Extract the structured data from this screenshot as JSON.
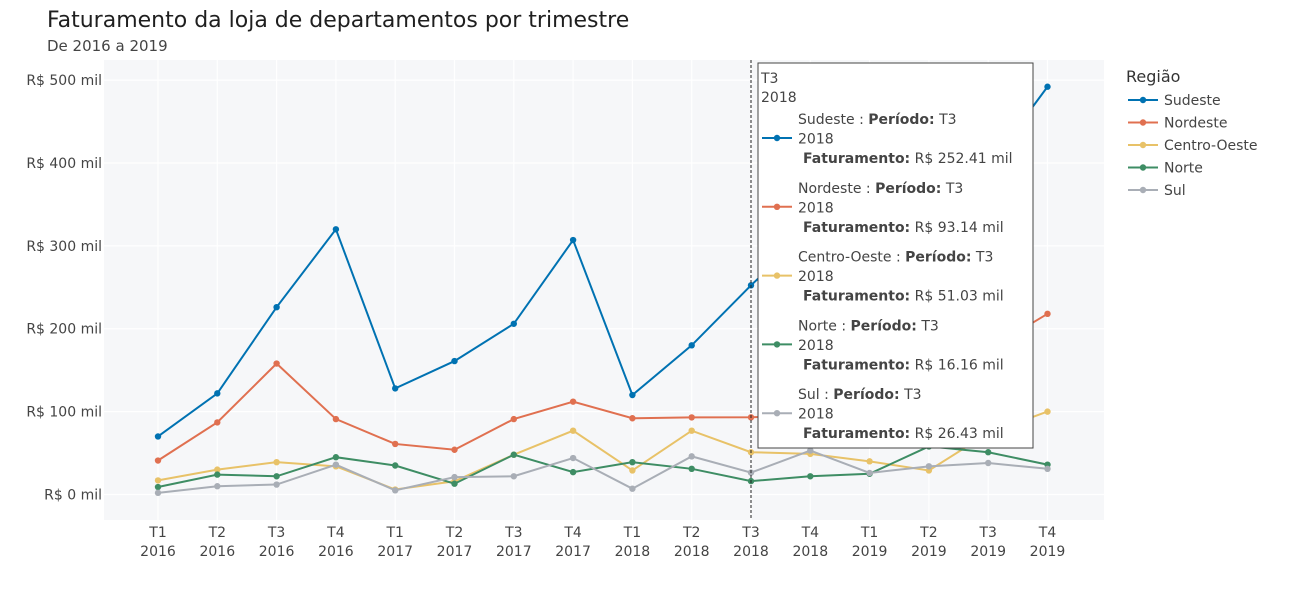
{
  "header": {
    "title": "Faturamento da loja de departamentos por trimestre",
    "subtitle": "De 2016 a 2019"
  },
  "chart_data": {
    "type": "line",
    "title": "Faturamento da loja de departamentos por trimestre",
    "subtitle": "De 2016 a 2019",
    "categories": [
      [
        "T1",
        "2016"
      ],
      [
        "T2",
        "2016"
      ],
      [
        "T3",
        "2016"
      ],
      [
        "T4",
        "2016"
      ],
      [
        "T1",
        "2017"
      ],
      [
        "T2",
        "2017"
      ],
      [
        "T3",
        "2017"
      ],
      [
        "T4",
        "2017"
      ],
      [
        "T1",
        "2018"
      ],
      [
        "T2",
        "2018"
      ],
      [
        "T3",
        "2018"
      ],
      [
        "T4",
        "2018"
      ],
      [
        "T1",
        "2019"
      ],
      [
        "T2",
        "2019"
      ],
      [
        "T3",
        "2019"
      ],
      [
        "T4",
        "2019"
      ]
    ],
    "yticks": [
      {
        "value": 0,
        "label": "R$ 0 mil"
      },
      {
        "value": 100,
        "label": "R$ 100 mil"
      },
      {
        "value": 200,
        "label": "R$ 200 mil"
      },
      {
        "value": 300,
        "label": "R$ 300 mil"
      },
      {
        "value": 400,
        "label": "R$ 400 mil"
      },
      {
        "value": 500,
        "label": "R$ 500 mil"
      }
    ],
    "ylim": [
      -30,
      525
    ],
    "grid": true,
    "legend_title": "Região",
    "legend_position": "right",
    "series": [
      {
        "name": "Sudeste",
        "color": "#0072b2",
        "values": [
          70,
          122,
          226,
          320,
          128,
          161,
          206,
          307,
          120,
          180,
          252.41,
          320,
          338,
          365,
          395,
          492
        ]
      },
      {
        "name": "Nordeste",
        "color": "#e07050",
        "values": [
          41,
          87,
          158,
          91,
          61,
          54,
          91,
          112,
          92,
          93,
          93.14,
          96,
          115,
          140,
          175,
          218
        ]
      },
      {
        "name": "Centro-Oeste",
        "color": "#e8c268",
        "values": [
          17,
          30,
          39,
          34,
          6,
          16,
          48,
          77,
          29,
          77,
          51.03,
          49,
          40,
          29,
          74,
          100
        ]
      },
      {
        "name": "Norte",
        "color": "#3e8d64",
        "values": [
          9,
          24,
          22,
          45,
          35,
          13,
          48,
          27,
          39,
          31,
          16.16,
          22,
          25,
          58,
          51,
          36
        ]
      },
      {
        "name": "Sul",
        "color": "#a9aeb6",
        "values": [
          2,
          10,
          12,
          36,
          5,
          21,
          22,
          44,
          7,
          46,
          26.43,
          53,
          26,
          34,
          38,
          31
        ]
      }
    ],
    "hover": {
      "index": 10,
      "header_line1": "T3",
      "header_line2": "2018",
      "period_label": "Período:",
      "revenue_label": "Faturamento:",
      "entries": [
        {
          "name": "Sudeste",
          "period_value": "T3",
          "year": "2018",
          "revenue_value": "R$ 252.41 mil"
        },
        {
          "name": "Nordeste",
          "period_value": "T3",
          "year": "2018",
          "revenue_value": "R$ 93.14 mil"
        },
        {
          "name": "Centro-Oeste",
          "period_value": "T3",
          "year": "2018",
          "revenue_value": "R$ 51.03 mil"
        },
        {
          "name": "Norte",
          "period_value": "T3",
          "year": "2018",
          "revenue_value": "R$ 16.16 mil"
        },
        {
          "name": "Sul",
          "period_value": "T3",
          "year": "2018",
          "revenue_value": "R$ 26.43 mil"
        }
      ]
    }
  }
}
